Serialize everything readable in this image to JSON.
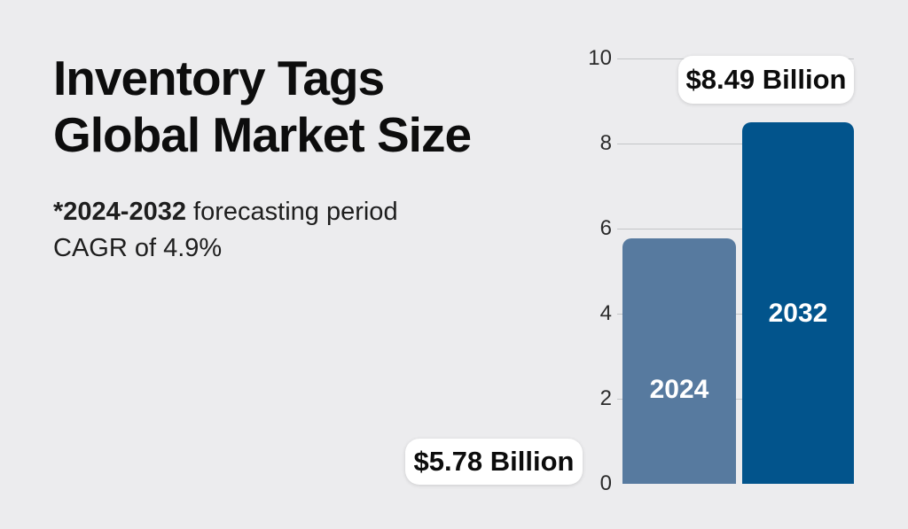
{
  "title": {
    "line1": "Inventory Tags",
    "line2": "Global Market Size"
  },
  "subtitle": {
    "period_bold": "*2024-2032",
    "period_rest": " forecasting period",
    "cagr": "CAGR of 4.9%"
  },
  "chart_data": {
    "type": "bar",
    "categories": [
      "2024",
      "2032"
    ],
    "values": [
      5.78,
      8.49
    ],
    "value_labels": [
      "$5.78 Billion",
      "$8.49 Billion"
    ],
    "title": "Inventory Tags Global Market Size",
    "xlabel": "",
    "ylabel": "",
    "ylim": [
      0,
      10
    ],
    "yticks": [
      0,
      2,
      4,
      6,
      8,
      10
    ],
    "grid": true,
    "legend": "none",
    "bar_colors": [
      "#577a9f",
      "#02548c"
    ]
  },
  "colors": {
    "background": "#ececee",
    "bar_2024": "#577a9f",
    "bar_2032": "#02548c",
    "gridline": "#c3c5c7",
    "pill_background": "#ffffff",
    "text": "#0d0d0d"
  }
}
